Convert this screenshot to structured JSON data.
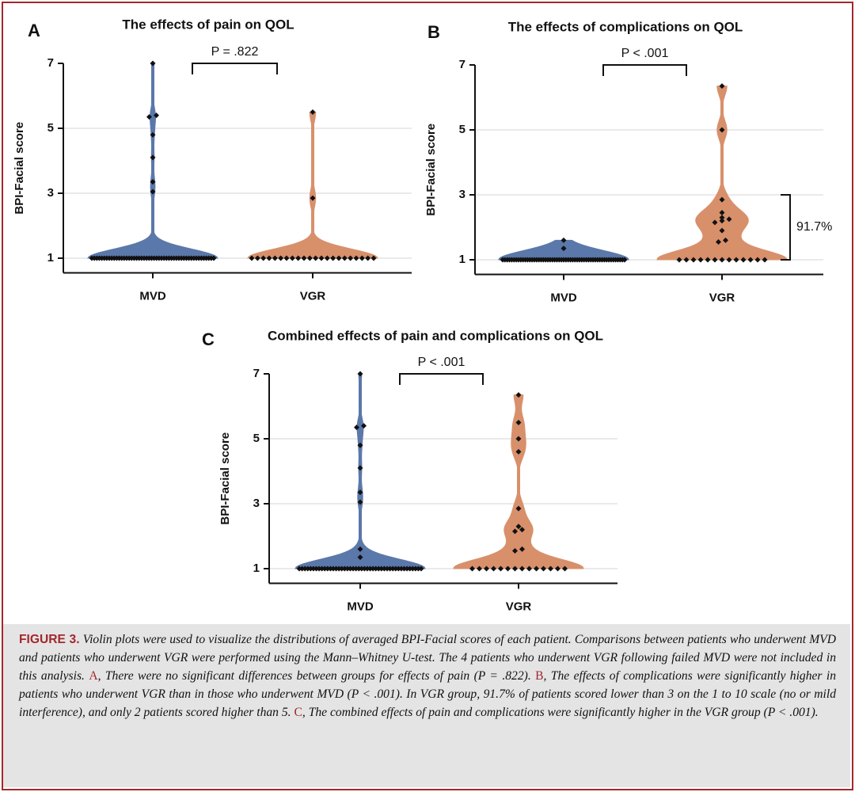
{
  "chart_data": [
    {
      "type": "violin",
      "panel": "A",
      "title": "The effects of pain on QOL",
      "ylabel": "BPI-Facial score",
      "ylim": [
        0.55,
        7
      ],
      "yticks": [
        1,
        3,
        5,
        7
      ],
      "grid": true,
      "annotation": {
        "text": "P = .822"
      },
      "series": [
        {
          "name": "MVD",
          "color": "#5b78aa",
          "values": [
            7,
            5.4,
            5.35,
            4.8,
            4.1,
            3.35,
            3.05,
            1,
            1,
            1,
            1,
            1,
            1,
            1,
            1,
            1,
            1,
            1,
            1,
            1,
            1,
            1,
            1,
            1,
            1,
            1,
            1,
            1,
            1,
            1,
            1,
            1,
            1,
            1,
            1,
            1,
            1,
            1,
            1,
            1,
            1,
            1,
            1,
            1,
            1,
            1,
            1,
            1,
            1,
            1,
            1,
            1,
            1,
            1,
            1,
            1,
            1
          ]
        },
        {
          "name": "VGR",
          "color": "#d8906b",
          "values": [
            5.5,
            2.85,
            1,
            1,
            1,
            1,
            1,
            1,
            1,
            1,
            1,
            1,
            1,
            1,
            1,
            1,
            1,
            1,
            1,
            1,
            1,
            1,
            1,
            1
          ]
        }
      ]
    },
    {
      "type": "violin",
      "panel": "B",
      "title": "The effects of complications on QOL",
      "ylabel": "BPI-Facial score",
      "ylim": [
        0.55,
        7
      ],
      "yticks": [
        1,
        3,
        5,
        7
      ],
      "grid": true,
      "annotation": {
        "text": "P < .001"
      },
      "range_annotation": {
        "text": "91.7%",
        "range": [
          1,
          3
        ]
      },
      "series": [
        {
          "name": "MVD",
          "color": "#5b78aa",
          "values": [
            1.6,
            1.35,
            1,
            1,
            1,
            1,
            1,
            1,
            1,
            1,
            1,
            1,
            1,
            1,
            1,
            1,
            1,
            1,
            1,
            1,
            1,
            1,
            1,
            1,
            1,
            1,
            1,
            1,
            1,
            1,
            1,
            1,
            1,
            1,
            1,
            1,
            1,
            1,
            1,
            1,
            1,
            1,
            1,
            1,
            1,
            1,
            1,
            1,
            1,
            1,
            1,
            1,
            1,
            1,
            1,
            1,
            1
          ]
        },
        {
          "name": "VGR",
          "color": "#d8906b",
          "values": [
            6.35,
            5.0,
            2.85,
            2.45,
            2.3,
            2.25,
            2.2,
            2.15,
            1.9,
            1.6,
            1.55,
            1,
            1,
            1,
            1,
            1,
            1,
            1,
            1,
            1,
            1,
            1,
            1,
            1
          ]
        }
      ]
    },
    {
      "type": "violin",
      "panel": "C",
      "title": "Combined effects of pain and complications on QOL",
      "ylabel": "BPI-Facial score",
      "ylim": [
        0.55,
        7
      ],
      "yticks": [
        1,
        3,
        5,
        7
      ],
      "grid": true,
      "annotation": {
        "text": "P < .001"
      },
      "series": [
        {
          "name": "MVD",
          "color": "#5b78aa",
          "values": [
            7,
            5.4,
            5.35,
            4.8,
            4.1,
            3.35,
            3.05,
            1.6,
            1.35,
            1,
            1,
            1,
            1,
            1,
            1,
            1,
            1,
            1,
            1,
            1,
            1,
            1,
            1,
            1,
            1,
            1,
            1,
            1,
            1,
            1,
            1,
            1,
            1,
            1,
            1,
            1,
            1,
            1,
            1,
            1,
            1,
            1,
            1,
            1,
            1,
            1,
            1,
            1,
            1,
            1,
            1,
            1,
            1
          ]
        },
        {
          "name": "VGR",
          "color": "#d8906b",
          "values": [
            6.35,
            5.5,
            5.0,
            4.6,
            2.85,
            2.3,
            2.2,
            2.15,
            1.6,
            1.55,
            1,
            1,
            1,
            1,
            1,
            1,
            1,
            1,
            1,
            1,
            1,
            1,
            1,
            1
          ]
        }
      ]
    }
  ],
  "caption": {
    "label": "FIGURE 3.",
    "segments": [
      {
        "text": " Violin plots were used to visualize the distributions of averaged BPI-Facial scores of each patient. Comparisons between patients who underwent MVD and patients who underwent VGR were performed using the Mann–Whitney U-test. The 4 patients who underwent VGR following failed MVD were not included in this analysis. ",
        "highlight": false
      },
      {
        "text": "A",
        "highlight": true
      },
      {
        "text": ", There were no significant differences between groups for effects of pain (P = .822). ",
        "highlight": false
      },
      {
        "text": "B",
        "highlight": true
      },
      {
        "text": ", The effects of complications were significantly higher in patients who underwent VGR than in those who underwent MVD (P < .001). In VGR group, 91.7% of patients scored lower than 3 on the 1 to 10 scale (no or mild interference), and only 2 patients scored higher than 5. ",
        "highlight": false
      },
      {
        "text": "C",
        "highlight": true
      },
      {
        "text": ", The combined effects of pain and complications were significantly higher in the VGR group (P < .001).",
        "highlight": false
      }
    ]
  }
}
